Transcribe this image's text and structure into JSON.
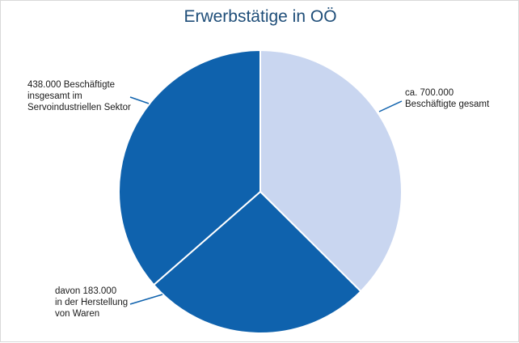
{
  "chart_data": {
    "type": "pie",
    "title": "Erwerbstätige in OÖ",
    "slices": [
      {
        "value": 262000,
        "color": "#c9d6f0",
        "label_lines": [
          "ca. 700.000",
          "Beschäftigte gesamt"
        ]
      },
      {
        "value": 183000,
        "color": "#0f62ad",
        "label_lines": [
          "davon 183.000",
          "in der Herstellung",
          "von Waren"
        ]
      },
      {
        "value": 255000,
        "color": "#0f62ad"
      }
    ],
    "annotations": [
      {
        "label_lines": [
          "438.000 Beschäftigte",
          "insgesamt im",
          "Servoindustriellen Sektor"
        ]
      }
    ],
    "colors": {
      "dark": "#0f62ad",
      "light": "#c9d6f0",
      "title": "#1f4e79"
    }
  }
}
